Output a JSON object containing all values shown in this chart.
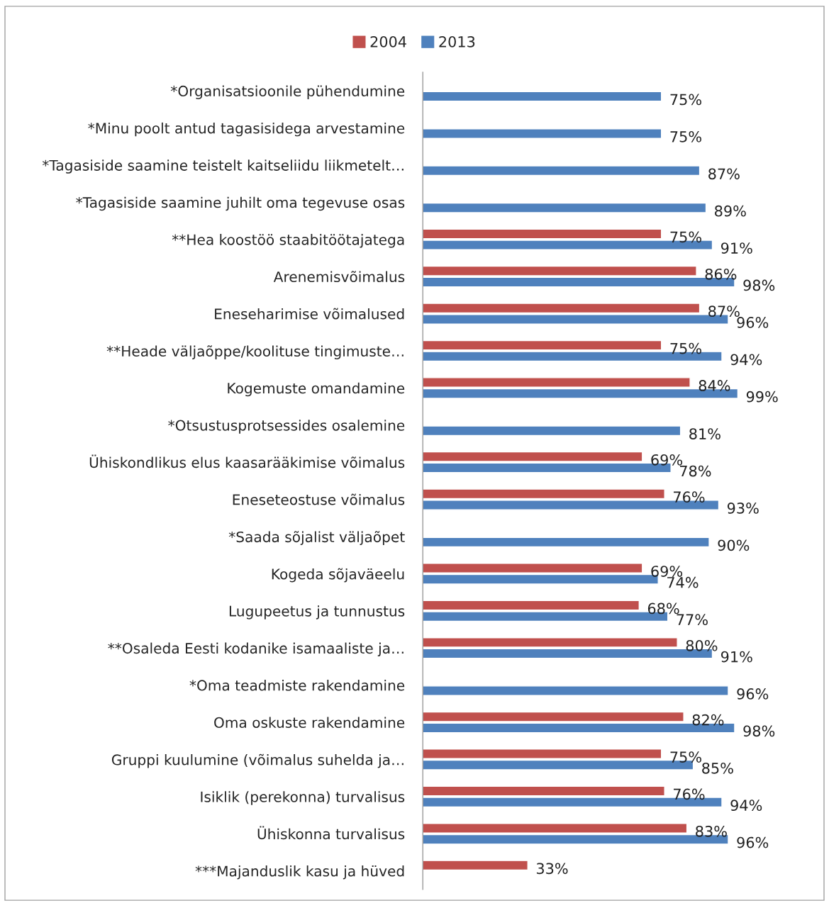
{
  "chart_data": {
    "type": "bar",
    "orientation": "horizontal",
    "legend": "top",
    "categories": [
      "*Organisatsioonile pühendumine",
      "*Minu poolt antud tagasisidega arvestamine",
      "*Tagasiside saamine teistelt kaitseliidu liikmetelt…",
      "*Tagasiside saamine juhilt oma tegevuse osas",
      "**Hea koostöö staabitöötajatega",
      "Arenemisvõimalus",
      "Eneseharimise võimalused",
      "**Heade väljaõppe/koolituse tingimuste…",
      "Kogemuste omandamine",
      "*Otsustusprotsessides osalemine",
      "Ühiskondlikus elus kaasarääkimise võimalus",
      "Eneseteostuse võimalus",
      "*Saada sõjalist väljaõpet",
      "Kogeda sõjaväeelu",
      "Lugupeetus ja tunnustus",
      "**Osaleda Eesti kodanike isamaaliste ja…",
      "*Oma teadmiste rakendamine",
      "Oma oskuste rakendamine",
      "Gruppi kuulumine (võimalus suhelda ja…",
      "Isiklik (perekonna) turvalisus",
      "Ühiskonna turvalisus",
      "***Majanduslik kasu ja hüved"
    ],
    "series": [
      {
        "name": "2004",
        "color": "#c0504d",
        "values": [
          null,
          null,
          null,
          null,
          75,
          86,
          87,
          75,
          84,
          null,
          69,
          76,
          null,
          69,
          68,
          80,
          null,
          82,
          75,
          76,
          83,
          33
        ],
        "value_labels": [
          null,
          null,
          null,
          null,
          "75%",
          "86%",
          "87%",
          "75%",
          "84%",
          null,
          "69%",
          "76%",
          null,
          "69%",
          "68%",
          "80%",
          null,
          "82%",
          "75%",
          "76%",
          "83%",
          "33%"
        ]
      },
      {
        "name": "2013",
        "color": "#4f81bd",
        "values": [
          75,
          75,
          87,
          89,
          91,
          98,
          96,
          94,
          99,
          81,
          78,
          93,
          90,
          74,
          77,
          91,
          96,
          98,
          85,
          94,
          96,
          null
        ],
        "value_labels": [
          "75%",
          "75%",
          "87%",
          "89%",
          "91%",
          "98%",
          "96%",
          "94%",
          "99%",
          "81%",
          "78%",
          "93%",
          "90%",
          "74%",
          "77%",
          "91%",
          "96%",
          "98%",
          "85%",
          "94%",
          "96%",
          null
        ]
      }
    ]
  }
}
